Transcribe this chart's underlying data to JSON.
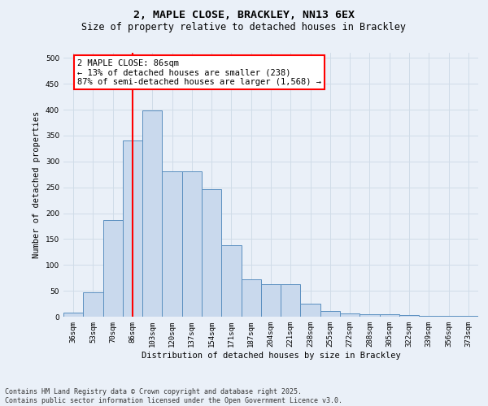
{
  "title_line1": "2, MAPLE CLOSE, BRACKLEY, NN13 6EX",
  "title_line2": "Size of property relative to detached houses in Brackley",
  "xlabel": "Distribution of detached houses by size in Brackley",
  "ylabel": "Number of detached properties",
  "categories": [
    "36sqm",
    "53sqm",
    "70sqm",
    "86sqm",
    "103sqm",
    "120sqm",
    "137sqm",
    "154sqm",
    "171sqm",
    "187sqm",
    "204sqm",
    "221sqm",
    "238sqm",
    "255sqm",
    "272sqm",
    "288sqm",
    "305sqm",
    "322sqm",
    "339sqm",
    "356sqm",
    "373sqm"
  ],
  "values": [
    8,
    47,
    187,
    341,
    398,
    281,
    281,
    247,
    138,
    72,
    63,
    63,
    25,
    11,
    7,
    5,
    4,
    3,
    2,
    1,
    2
  ],
  "bar_color": "#c9d9ed",
  "bar_edge_color": "#5a8fc0",
  "vline_x": 3,
  "vline_color": "red",
  "annotation_text": "2 MAPLE CLOSE: 86sqm\n← 13% of detached houses are smaller (238)\n87% of semi-detached houses are larger (1,568) →",
  "annotation_box_color": "red",
  "annotation_text_color": "black",
  "annotation_bg": "white",
  "ylim": [
    0,
    510
  ],
  "yticks": [
    0,
    50,
    100,
    150,
    200,
    250,
    300,
    350,
    400,
    450,
    500
  ],
  "grid_color": "#d0dce8",
  "bg_color": "#eaf0f8",
  "footer_text": "Contains HM Land Registry data © Crown copyright and database right 2025.\nContains public sector information licensed under the Open Government Licence v3.0.",
  "title_fontsize": 9.5,
  "subtitle_fontsize": 8.5,
  "axis_label_fontsize": 7.5,
  "tick_fontsize": 6.5,
  "annotation_fontsize": 7.5,
  "footer_fontsize": 6.0
}
